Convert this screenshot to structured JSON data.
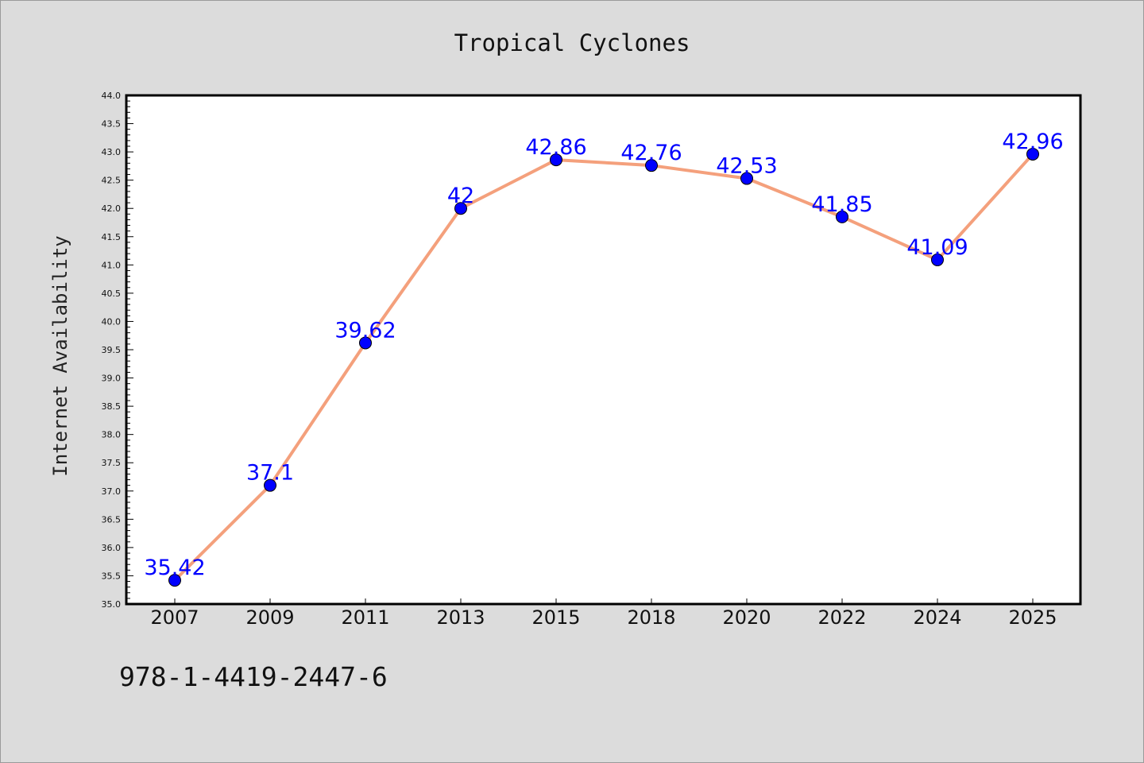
{
  "chart_data": {
    "type": "line",
    "title": "Tropical Cyclones",
    "xlabel": "",
    "ylabel": "Internet Availability",
    "categories": [
      "2007",
      "2009",
      "2011",
      "2013",
      "2015",
      "2018",
      "2020",
      "2022",
      "2024",
      "2025"
    ],
    "series": [
      {
        "values": [
          35.42,
          37.1,
          39.62,
          42,
          42.86,
          42.76,
          42.53,
          41.85,
          41.09,
          42.96
        ],
        "data_labels": [
          "35.42",
          "37.1",
          "39.62",
          "42",
          "42.86",
          "42.76",
          "42.53",
          "41.85",
          "41.09",
          "42.96"
        ],
        "line_color": "#f4a07c",
        "marker_color": "#0000ff"
      }
    ],
    "ylim": [
      35.0,
      44.0
    ],
    "yticks": [
      "35.0",
      "35.5",
      "36.0",
      "36.5",
      "37.0",
      "37.5",
      "38.0",
      "38.5",
      "39.0",
      "39.5",
      "40.0",
      "40.5",
      "41.0",
      "41.5",
      "42.0",
      "42.5",
      "43.0",
      "43.5",
      "44.0"
    ],
    "grid": false,
    "label_color": "#0000ff"
  },
  "footer": {
    "text": "978-1-4419-2447-6"
  }
}
